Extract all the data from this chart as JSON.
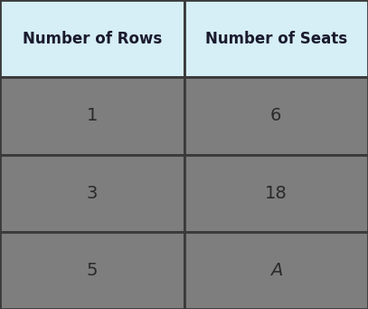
{
  "col_headers": [
    "Number of Rows",
    "Number of Seats"
  ],
  "rows": [
    [
      "1",
      "6"
    ],
    [
      "3",
      "18"
    ],
    [
      "5",
      "A"
    ]
  ],
  "header_bg": "#d6eef5",
  "cell_bg": "#7e7e7e",
  "header_text_color": "#1a1a2e",
  "cell_text_color": "#2a2a2a",
  "border_color": "#3a3a3a",
  "fig_bg": "#3a3a3a",
  "header_fontsize": 12,
  "cell_fontsize": 14,
  "italic_last": true
}
